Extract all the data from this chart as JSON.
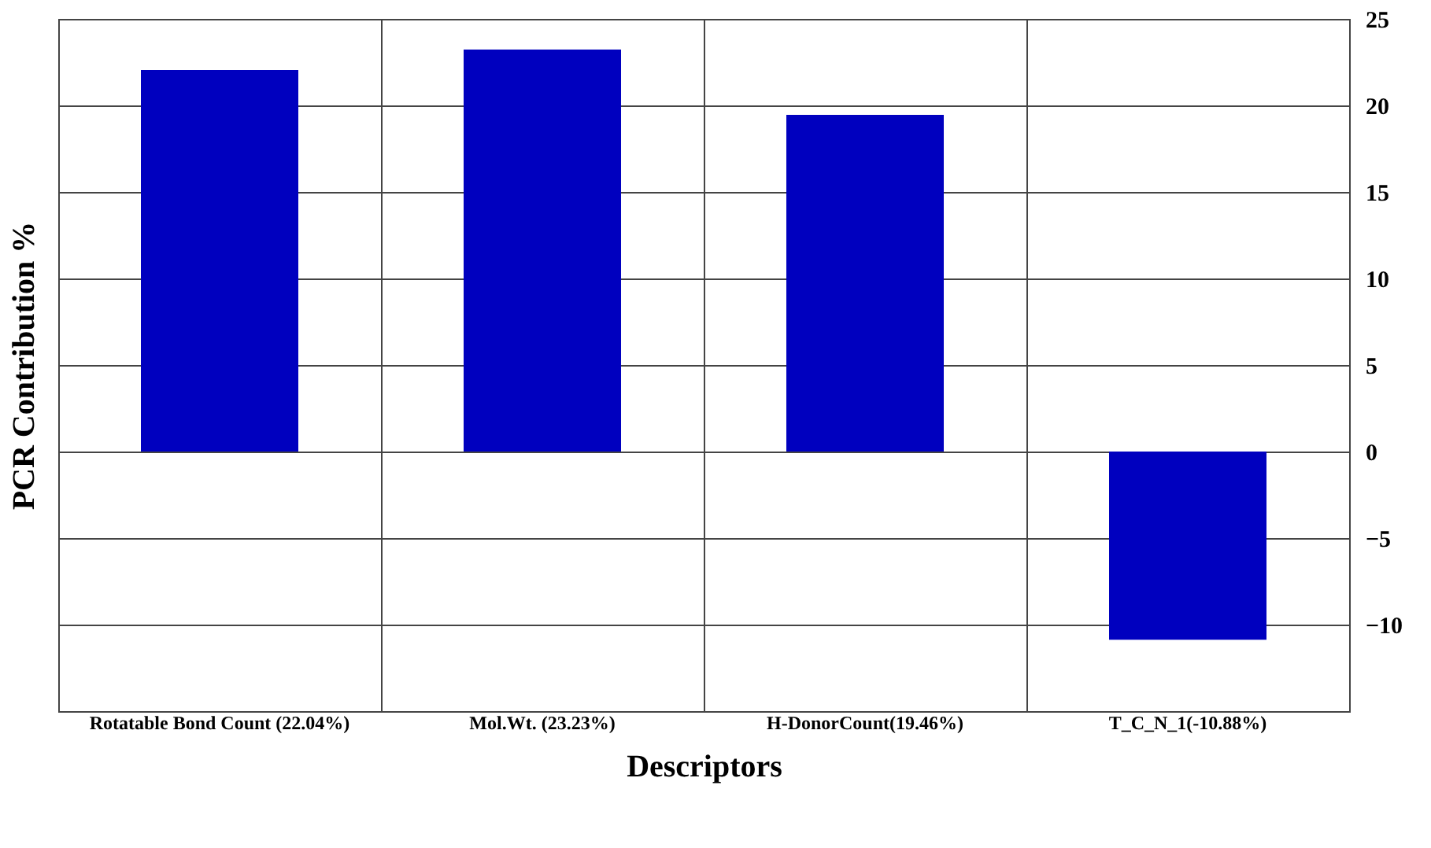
{
  "chart_data": {
    "type": "bar",
    "categories": [
      "Rotatable Bond Count (22.04%)",
      "Mol.Wt. (23.23%)",
      "H-DonorCount(19.46%)",
      "T_C_N_1(-10.88%)"
    ],
    "values": [
      22.04,
      23.23,
      19.46,
      -10.88
    ],
    "color": "#0000bf",
    "xlabel": "Descriptors",
    "ylabel": "PCR Contribution %",
    "ylim": [
      -15,
      25
    ],
    "yticks": [
      -10,
      -5,
      0,
      5,
      10,
      15,
      20,
      25
    ],
    "grid": true
  }
}
